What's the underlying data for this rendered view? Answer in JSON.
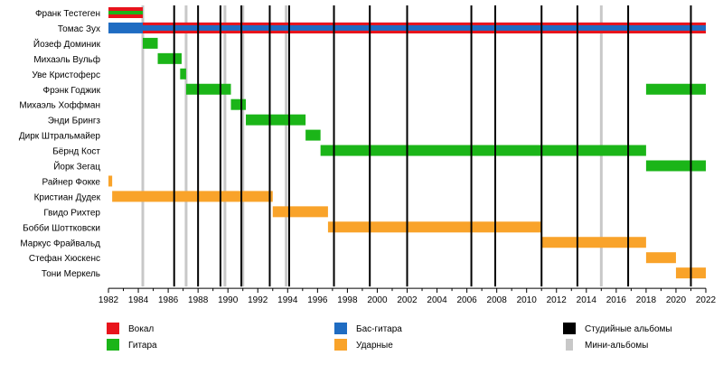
{
  "chart_data": {
    "type": "timeline",
    "x_range": [
      1982,
      2022
    ],
    "x_ticks": [
      1982,
      1984,
      1986,
      1988,
      1990,
      1992,
      1994,
      1996,
      1998,
      2000,
      2002,
      2004,
      2006,
      2008,
      2010,
      2012,
      2014,
      2016,
      2018,
      2020,
      2022
    ],
    "colors": {
      "vocals": "#e8141c",
      "guitar": "#1bb518",
      "bass": "#1f6cc2",
      "drums": "#f9a32a",
      "studio": "#000000",
      "mini": "#c8c8c8"
    },
    "members": [
      {
        "name": "Франк Тестеген",
        "periods": [
          {
            "role": "vocals",
            "start": 1982.0,
            "end": 1984.3
          },
          {
            "role": "guitar",
            "start": 1982.0,
            "end": 1984.3
          }
        ]
      },
      {
        "name": "Томас Зух",
        "periods": [
          {
            "role": "bass",
            "start": 1982.0,
            "end": 2022.0
          },
          {
            "role": "vocals",
            "start": 1984.3,
            "end": 2022.0
          }
        ]
      },
      {
        "name": "Йозеф Доминик",
        "periods": [
          {
            "role": "guitar",
            "start": 1984.3,
            "end": 1985.3
          }
        ]
      },
      {
        "name": "Михаэль Вульф",
        "periods": [
          {
            "role": "guitar",
            "start": 1985.3,
            "end": 1986.9
          }
        ]
      },
      {
        "name": "Уве Кристоферс",
        "periods": [
          {
            "role": "guitar",
            "start": 1986.8,
            "end": 1987.2
          }
        ]
      },
      {
        "name": "Фрэнк Годжик",
        "periods": [
          {
            "role": "guitar",
            "start": 1987.2,
            "end": 1990.2
          },
          {
            "role": "guitar",
            "start": 2018.0,
            "end": 2022.0
          }
        ]
      },
      {
        "name": "Михаэль Хоффман",
        "periods": [
          {
            "role": "guitar",
            "start": 1990.2,
            "end": 1991.2
          }
        ]
      },
      {
        "name": "Энди Брингз",
        "periods": [
          {
            "role": "guitar",
            "start": 1991.2,
            "end": 1995.2
          }
        ]
      },
      {
        "name": "Дирк Штральмайер",
        "periods": [
          {
            "role": "guitar",
            "start": 1995.2,
            "end": 1996.2
          }
        ]
      },
      {
        "name": "Бёрнд Кост",
        "periods": [
          {
            "role": "guitar",
            "start": 1996.2,
            "end": 2018.0
          }
        ]
      },
      {
        "name": "Йорк Зегац",
        "periods": [
          {
            "role": "guitar",
            "start": 2018.0,
            "end": 2022.0
          }
        ]
      },
      {
        "name": "Райнер Фокке",
        "periods": [
          {
            "role": "drums",
            "start": 1982.0,
            "end": 1982.25
          }
        ]
      },
      {
        "name": "Кристиан Дудек",
        "periods": [
          {
            "role": "drums",
            "start": 1982.25,
            "end": 1993.0
          }
        ]
      },
      {
        "name": "Гвидо Рихтер",
        "periods": [
          {
            "role": "drums",
            "start": 1993.0,
            "end": 1996.7
          }
        ]
      },
      {
        "name": "Бобби Шоттковски",
        "periods": [
          {
            "role": "drums",
            "start": 1996.7,
            "end": 2011.0
          }
        ]
      },
      {
        "name": "Маркус Фрайвальд",
        "periods": [
          {
            "role": "drums",
            "start": 2011.0,
            "end": 2018.0
          }
        ]
      },
      {
        "name": "Стефан Хюскенс",
        "periods": [
          {
            "role": "drums",
            "start": 2018.0,
            "end": 2020.0
          }
        ]
      },
      {
        "name": "Тони Меркель",
        "periods": [
          {
            "role": "drums",
            "start": 2020.0,
            "end": 2022.0
          }
        ]
      }
    ],
    "studio_albums": [
      1986.4,
      1988.0,
      1989.5,
      1990.9,
      1992.8,
      1994.1,
      1997.1,
      1999.5,
      2002.0,
      2006.3,
      2007.9,
      2011.0,
      2013.4,
      2016.8,
      2021.0
    ],
    "mini_albums": [
      1984.3,
      1987.2,
      1989.8,
      1991.0,
      1993.9,
      2015.0
    ],
    "legend": [
      {
        "label": "Вокал",
        "color": "#e8141c",
        "style": "box"
      },
      {
        "label": "Гитара",
        "color": "#1bb518",
        "style": "box"
      },
      {
        "label": "Бас-гитара",
        "color": "#1f6cc2",
        "style": "box"
      },
      {
        "label": "Ударные",
        "color": "#f9a32a",
        "style": "box"
      },
      {
        "label": "Студийные альбомы",
        "color": "#000000",
        "style": "box"
      },
      {
        "label": "Мини-альбомы",
        "color": "#c8c8c8",
        "style": "line"
      }
    ]
  }
}
